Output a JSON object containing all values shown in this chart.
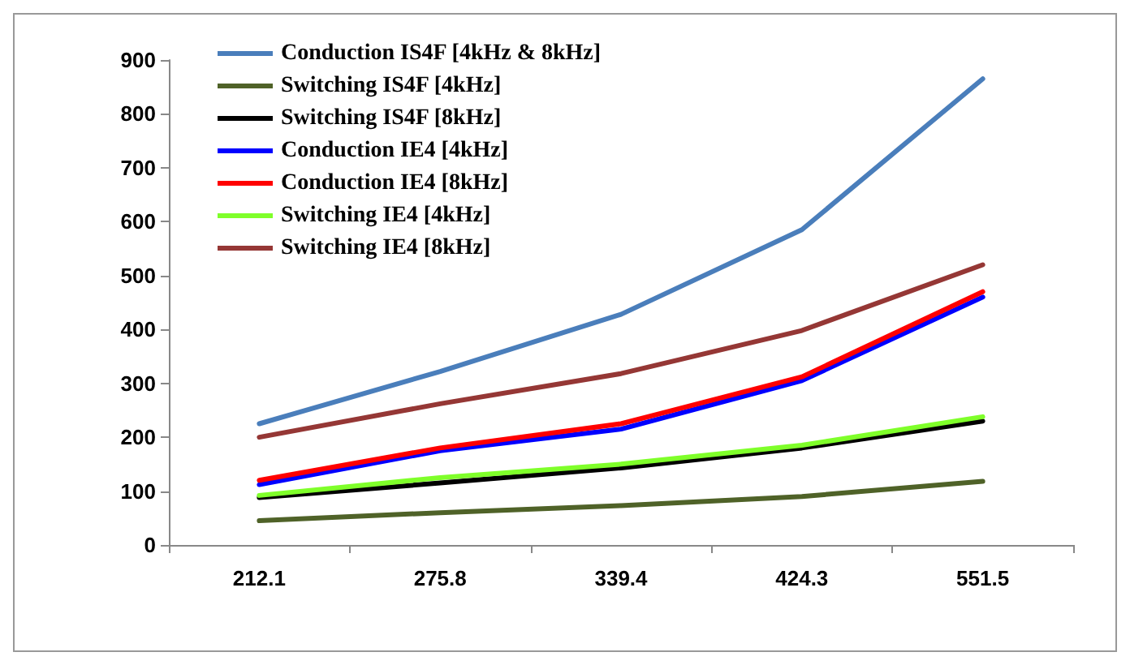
{
  "chart_data": {
    "type": "line",
    "categories": [
      "212.1",
      "275.8",
      "339.4",
      "424.3",
      "551.5"
    ],
    "ylim": [
      0,
      900
    ],
    "yticks": [
      0,
      100,
      200,
      300,
      400,
      500,
      600,
      700,
      800,
      900
    ],
    "grid": false,
    "legend": "top left",
    "marker": "none",
    "line_style": "solid",
    "series": [
      {
        "name": "Conduction IS4F [4kHz & 8kHz]",
        "color": "#4a7ebb",
        "values": [
          225,
          322,
          428,
          585,
          865
        ]
      },
      {
        "name": "Switching IS4F [4kHz]",
        "color": "#4f6228",
        "values": [
          45,
          60,
          73,
          90,
          118
        ]
      },
      {
        "name": "Switching IS4F [8kHz]",
        "color": "#000000",
        "values": [
          88,
          115,
          143,
          180,
          230
        ]
      },
      {
        "name": "Conduction IE4 [4kHz]",
        "color": "#0000ff",
        "values": [
          112,
          175,
          215,
          305,
          460
        ]
      },
      {
        "name": "Conduction IE4 [8kHz]",
        "color": "#ff0000",
        "values": [
          120,
          180,
          225,
          312,
          470
        ]
      },
      {
        "name": "Switching IE4 [4kHz]",
        "color": "#7fff2a",
        "values": [
          92,
          125,
          150,
          185,
          238
        ]
      },
      {
        "name": "Switching IE4 [8kHz]",
        "color": "#953735",
        "values": [
          200,
          262,
          318,
          398,
          520
        ]
      }
    ]
  }
}
